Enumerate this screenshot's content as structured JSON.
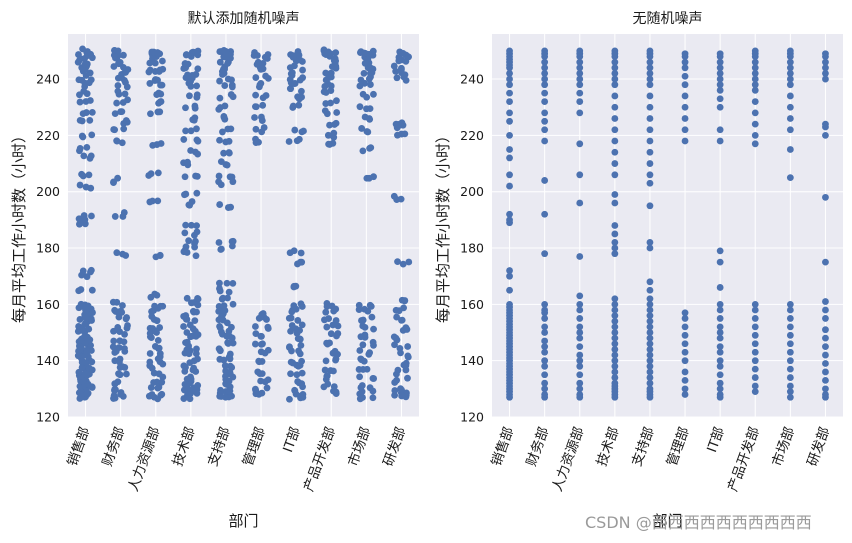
{
  "watermark": "CSDN @西西西西西西西西西西",
  "chart_data": [
    {
      "type": "scatter",
      "variant": "strip-jitter",
      "title": "默认添加随机噪声",
      "xlabel": "部门",
      "ylabel": "每月平均工作小时数（小时）",
      "ylim": [
        120,
        256
      ],
      "yticks": [
        120,
        140,
        160,
        180,
        200,
        220,
        240
      ],
      "grid": true,
      "point_color": "#4c72b0",
      "background": "#eaeaf2",
      "categories": [
        "销售部",
        "财务部",
        "人力资源部",
        "技术部",
        "支持部",
        "管理部",
        "IT部",
        "产品开发部",
        "市场部",
        "研发部"
      ],
      "series": [
        {
          "category": "销售部",
          "values": [
            127,
            128,
            129,
            130,
            131,
            132,
            133,
            134,
            135,
            136,
            137,
            138,
            139,
            140,
            141,
            142,
            143,
            144,
            145,
            146,
            147,
            148,
            149,
            150,
            151,
            152,
            153,
            154,
            155,
            156,
            157,
            158,
            159,
            160,
            165,
            170,
            172,
            189,
            190,
            192,
            202,
            206,
            212,
            215,
            220,
            225,
            228,
            232,
            235,
            238,
            240,
            242,
            244,
            245,
            246,
            247,
            248,
            249,
            250
          ]
        },
        {
          "category": "财务部",
          "values": [
            127,
            128,
            130,
            132,
            135,
            138,
            140,
            143,
            145,
            147,
            150,
            152,
            155,
            157,
            158,
            160,
            178,
            192,
            204,
            218,
            222,
            225,
            228,
            232,
            235,
            238,
            240,
            242,
            244,
            246,
            248,
            249,
            250
          ]
        },
        {
          "category": "人力资源部",
          "values": [
            127,
            128,
            130,
            132,
            135,
            138,
            140,
            142,
            145,
            148,
            150,
            152,
            155,
            158,
            160,
            163,
            177,
            196,
            206,
            217,
            228,
            232,
            235,
            238,
            240,
            242,
            244,
            246,
            248,
            249,
            250
          ]
        },
        {
          "category": "技术部",
          "values": [
            127,
            128,
            129,
            130,
            131,
            132,
            134,
            136,
            138,
            140,
            142,
            144,
            146,
            148,
            150,
            152,
            154,
            156,
            158,
            160,
            162,
            178,
            180,
            182,
            185,
            188,
            196,
            199,
            206,
            210,
            214,
            218,
            222,
            226,
            230,
            234,
            238,
            240,
            242,
            244,
            246,
            248,
            249,
            250
          ]
        },
        {
          "category": "支持部",
          "values": [
            127,
            128,
            129,
            130,
            132,
            134,
            136,
            138,
            140,
            142,
            144,
            146,
            148,
            150,
            152,
            154,
            156,
            158,
            160,
            162,
            165,
            168,
            180,
            182,
            195,
            203,
            206,
            210,
            214,
            218,
            222,
            226,
            230,
            234,
            238,
            240,
            242,
            244,
            246,
            248,
            249,
            250
          ]
        },
        {
          "category": "管理部",
          "values": [
            128,
            130,
            133,
            136,
            140,
            143,
            146,
            149,
            152,
            155,
            157,
            218,
            222,
            226,
            230,
            234,
            238,
            241,
            244,
            246,
            248,
            249
          ]
        },
        {
          "category": "IT部",
          "values": [
            127,
            128,
            130,
            132,
            135,
            138,
            140,
            143,
            145,
            148,
            150,
            152,
            155,
            158,
            160,
            166,
            175,
            179,
            218,
            222,
            230,
            233,
            236,
            238,
            240,
            242,
            244,
            246,
            248,
            249
          ]
        },
        {
          "category": "产品开发部",
          "values": [
            129,
            131,
            134,
            137,
            140,
            143,
            146,
            149,
            152,
            155,
            158,
            160,
            217,
            220,
            224,
            228,
            232,
            236,
            238,
            240,
            242,
            244,
            246,
            248,
            249,
            250
          ]
        },
        {
          "category": "市场部",
          "values": [
            127,
            129,
            131,
            134,
            137,
            140,
            143,
            146,
            149,
            152,
            155,
            158,
            160,
            205,
            215,
            222,
            226,
            230,
            234,
            238,
            240,
            242,
            244,
            246,
            248,
            249,
            250
          ]
        },
        {
          "category": "研发部",
          "values": [
            127,
            128,
            130,
            133,
            136,
            139,
            142,
            145,
            148,
            151,
            155,
            158,
            161,
            175,
            198,
            220,
            223,
            224,
            240,
            242,
            244,
            246,
            248,
            249
          ]
        }
      ]
    },
    {
      "type": "scatter",
      "variant": "strip-no-jitter",
      "title": "无随机噪声",
      "xlabel": "部门",
      "ylabel": "每月平均工作小时数（小时）",
      "ylim": [
        120,
        256
      ],
      "yticks": [
        120,
        140,
        160,
        180,
        200,
        220,
        240
      ],
      "grid": true,
      "point_color": "#4c72b0",
      "background": "#eaeaf2",
      "categories": [
        "销售部",
        "财务部",
        "人力资源部",
        "技术部",
        "支持部",
        "管理部",
        "IT部",
        "产品开发部",
        "市场部",
        "研发部"
      ],
      "series": [
        {
          "category": "销售部",
          "values": [
            127,
            128,
            129,
            130,
            131,
            132,
            133,
            134,
            135,
            136,
            137,
            138,
            139,
            140,
            141,
            142,
            143,
            144,
            145,
            146,
            147,
            148,
            149,
            150,
            151,
            152,
            153,
            154,
            155,
            156,
            157,
            158,
            159,
            160,
            165,
            170,
            172,
            189,
            190,
            192,
            202,
            206,
            212,
            215,
            220,
            225,
            228,
            232,
            235,
            238,
            240,
            242,
            244,
            245,
            246,
            247,
            248,
            249,
            250
          ]
        },
        {
          "category": "财务部",
          "values": [
            127,
            128,
            130,
            132,
            135,
            138,
            140,
            143,
            145,
            147,
            150,
            152,
            155,
            157,
            158,
            160,
            178,
            192,
            204,
            218,
            222,
            225,
            228,
            232,
            235,
            238,
            240,
            242,
            244,
            246,
            248,
            249,
            250
          ]
        },
        {
          "category": "人力资源部",
          "values": [
            127,
            128,
            130,
            132,
            135,
            138,
            140,
            142,
            145,
            148,
            150,
            152,
            155,
            158,
            160,
            163,
            177,
            196,
            206,
            217,
            228,
            232,
            235,
            238,
            240,
            242,
            244,
            246,
            248,
            249,
            250
          ]
        },
        {
          "category": "技术部",
          "values": [
            127,
            128,
            129,
            130,
            131,
            132,
            134,
            136,
            138,
            140,
            142,
            144,
            146,
            148,
            150,
            152,
            154,
            156,
            158,
            160,
            162,
            178,
            180,
            182,
            185,
            188,
            196,
            199,
            206,
            210,
            214,
            218,
            222,
            226,
            230,
            234,
            238,
            240,
            242,
            244,
            246,
            248,
            249,
            250
          ]
        },
        {
          "category": "支持部",
          "values": [
            127,
            128,
            129,
            130,
            132,
            134,
            136,
            138,
            140,
            142,
            144,
            146,
            148,
            150,
            152,
            154,
            156,
            158,
            160,
            162,
            165,
            168,
            180,
            182,
            195,
            203,
            206,
            210,
            214,
            218,
            222,
            226,
            230,
            234,
            238,
            240,
            242,
            244,
            246,
            248,
            249,
            250
          ]
        },
        {
          "category": "管理部",
          "values": [
            128,
            130,
            133,
            136,
            140,
            143,
            146,
            149,
            152,
            155,
            157,
            218,
            222,
            226,
            230,
            234,
            238,
            241,
            244,
            246,
            248,
            249
          ]
        },
        {
          "category": "IT部",
          "values": [
            127,
            128,
            130,
            132,
            135,
            138,
            140,
            143,
            145,
            148,
            150,
            152,
            155,
            158,
            160,
            166,
            175,
            179,
            218,
            222,
            230,
            233,
            236,
            238,
            240,
            242,
            244,
            246,
            248,
            249
          ]
        },
        {
          "category": "产品开发部",
          "values": [
            129,
            131,
            134,
            137,
            140,
            143,
            146,
            149,
            152,
            155,
            158,
            160,
            217,
            220,
            224,
            228,
            232,
            236,
            238,
            240,
            242,
            244,
            246,
            248,
            249,
            250
          ]
        },
        {
          "category": "市场部",
          "values": [
            127,
            129,
            131,
            134,
            137,
            140,
            143,
            146,
            149,
            152,
            155,
            158,
            160,
            205,
            215,
            222,
            226,
            230,
            234,
            238,
            240,
            242,
            244,
            246,
            248,
            249,
            250
          ]
        },
        {
          "category": "研发部",
          "values": [
            127,
            128,
            130,
            133,
            136,
            139,
            142,
            145,
            148,
            151,
            155,
            158,
            161,
            175,
            198,
            220,
            223,
            224,
            240,
            242,
            244,
            246,
            248,
            249
          ]
        }
      ]
    }
  ]
}
